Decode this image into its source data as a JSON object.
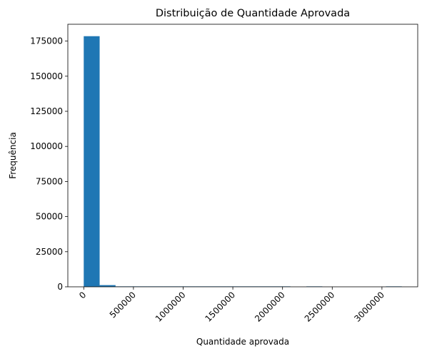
{
  "chart_data": {
    "type": "bar",
    "subtype": "histogram",
    "title": "Distribuição de Quantidade Aprovada",
    "xlabel": "Quantidade aprovada",
    "ylabel": "Frequência",
    "xlim": [
      -160000,
      3360000
    ],
    "ylim": [
      0,
      187000
    ],
    "xticks": [
      0,
      500000,
      1000000,
      1500000,
      2000000,
      2500000,
      3000000
    ],
    "xtick_labels": [
      "0",
      "500000",
      "1000000",
      "1500000",
      "2000000",
      "2500000",
      "3000000"
    ],
    "xtick_rotation": 45,
    "yticks": [
      0,
      25000,
      50000,
      75000,
      100000,
      125000,
      150000,
      175000
    ],
    "ytick_labels": [
      "0",
      "25000",
      "50000",
      "75000",
      "100000",
      "125000",
      "150000",
      "175000"
    ],
    "bins": [
      {
        "x0": 0,
        "x1": 160000,
        "count": 178500
      },
      {
        "x0": 160000,
        "x1": 320000,
        "count": 1200
      },
      {
        "x0": 320000,
        "x1": 480000,
        "count": 150
      },
      {
        "x0": 480000,
        "x1": 640000,
        "count": 40
      },
      {
        "x0": 640000,
        "x1": 800000,
        "count": 15
      },
      {
        "x0": 800000,
        "x1": 960000,
        "count": 8
      },
      {
        "x0": 960000,
        "x1": 1120000,
        "count": 5
      },
      {
        "x0": 1120000,
        "x1": 1280000,
        "count": 3
      },
      {
        "x0": 1280000,
        "x1": 1440000,
        "count": 2
      },
      {
        "x0": 1440000,
        "x1": 1600000,
        "count": 2
      },
      {
        "x0": 1600000,
        "x1": 1760000,
        "count": 1
      },
      {
        "x0": 1760000,
        "x1": 1920000,
        "count": 1
      },
      {
        "x0": 1920000,
        "x1": 2080000,
        "count": 1
      },
      {
        "x0": 2080000,
        "x1": 2240000,
        "count": 0
      },
      {
        "x0": 2240000,
        "x1": 2400000,
        "count": 1
      },
      {
        "x0": 2400000,
        "x1": 2560000,
        "count": 0
      },
      {
        "x0": 2560000,
        "x1": 2720000,
        "count": 0
      },
      {
        "x0": 2720000,
        "x1": 2880000,
        "count": 0
      },
      {
        "x0": 2880000,
        "x1": 3040000,
        "count": 0
      },
      {
        "x0": 3040000,
        "x1": 3200000,
        "count": 1
      }
    ],
    "bar_color": "#1f77b4",
    "grid": false,
    "legend": "none"
  }
}
